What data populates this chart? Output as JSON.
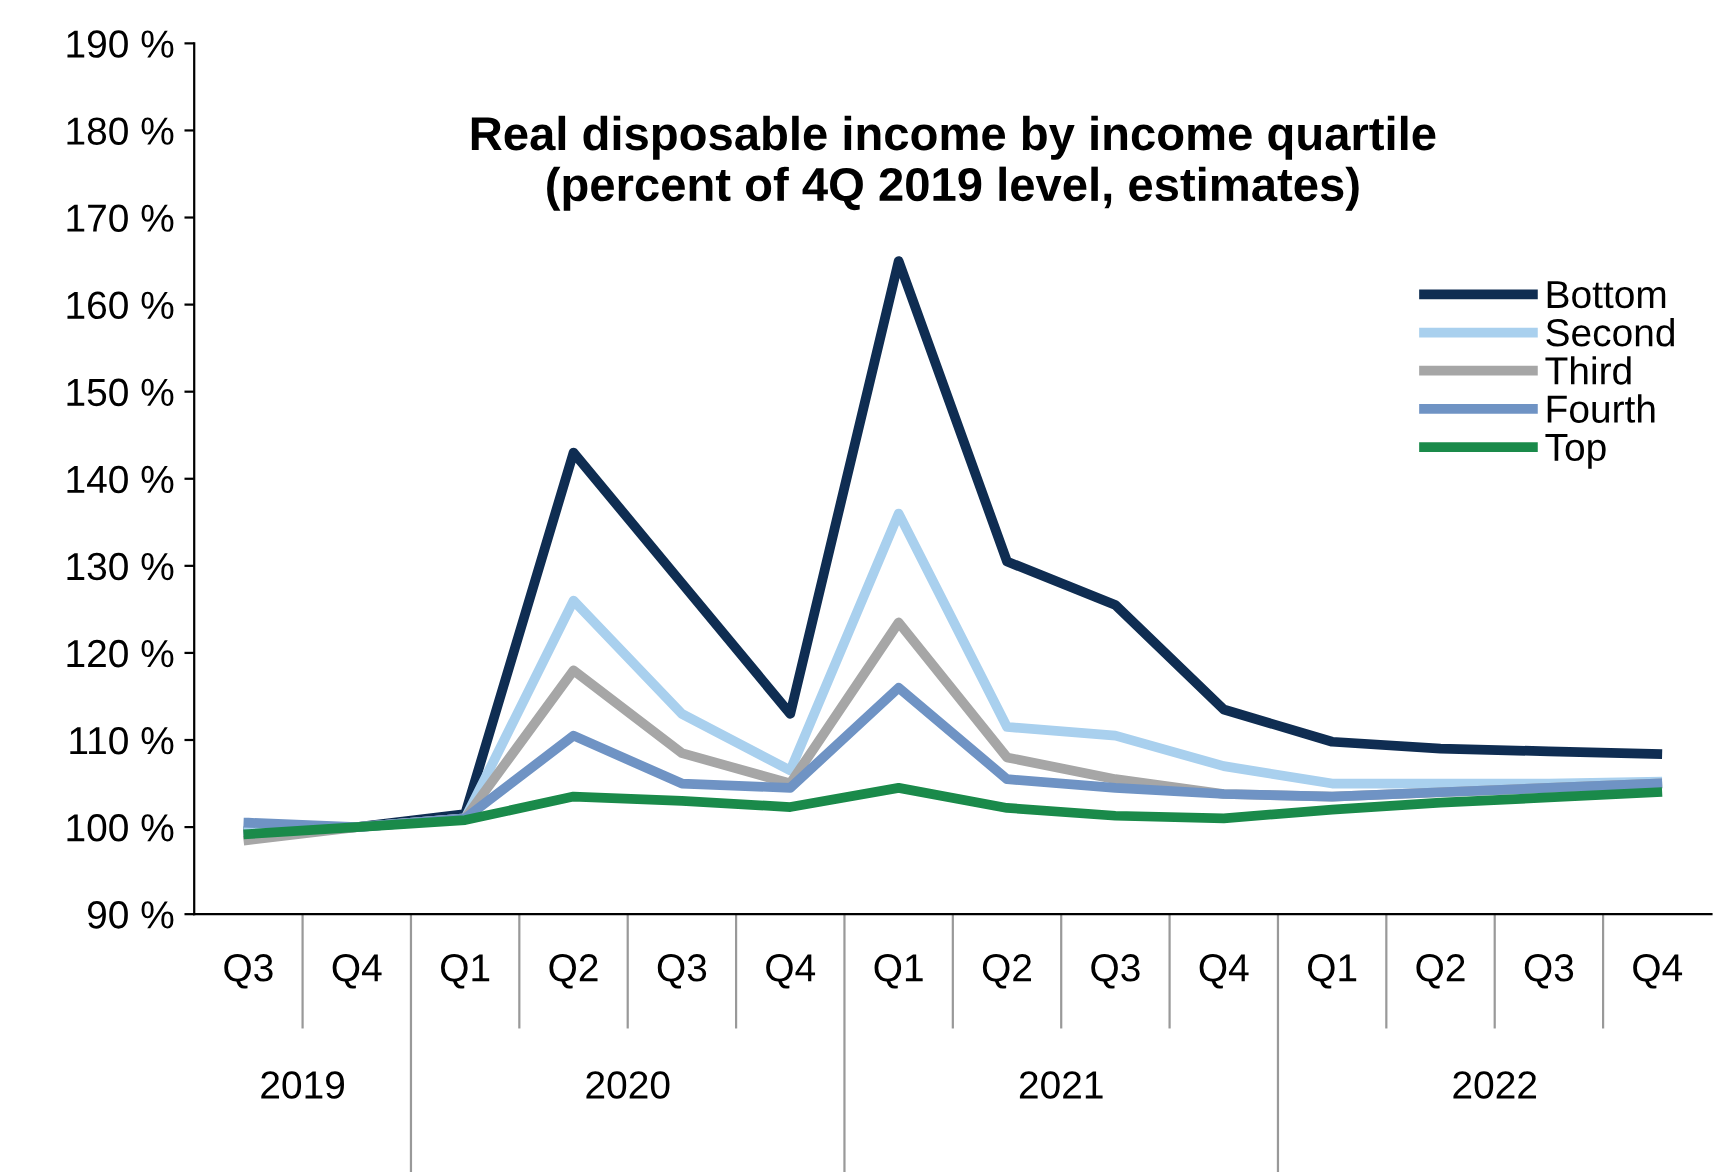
{
  "chart_data": {
    "type": "line",
    "title": "Real disposable income by income quartile\n(percent of 4Q 2019 level, estimates)",
    "categories": [
      "Q3",
      "Q4",
      "Q1",
      "Q2",
      "Q3",
      "Q4",
      "Q1",
      "Q2",
      "Q3",
      "Q4",
      "Q1",
      "Q2",
      "Q3",
      "Q4"
    ],
    "annotations": [
      "2019",
      "2020",
      "2021",
      "2022"
    ],
    "series": [
      {
        "name": "Bottom",
        "color": "#0f2d52",
        "values": [
          99.5,
          100,
          101.5,
          143,
          128,
          113,
          165,
          130.5,
          125.5,
          113.5,
          109.8,
          109,
          108.7,
          108.4
        ]
      },
      {
        "name": "Second",
        "color": "#a9d0ee",
        "values": [
          99.5,
          100,
          101,
          126,
          113,
          106.5,
          136,
          111.5,
          110.5,
          107,
          105,
          105,
          105,
          105.2
        ]
      },
      {
        "name": "Third",
        "color": "#a6a6a6",
        "values": [
          98.5,
          100,
          101,
          118,
          108.5,
          105,
          123.5,
          108,
          105.5,
          103.8,
          103.5,
          104,
          104.5,
          105
        ]
      },
      {
        "name": "Fourth",
        "color": "#6f93c4",
        "values": [
          100.5,
          100,
          101,
          110.5,
          105,
          104.5,
          116,
          105.5,
          104.5,
          103.8,
          103.5,
          104,
          104.5,
          105
        ]
      },
      {
        "name": "Top",
        "color": "#1a8a4a",
        "values": [
          99.2,
          100,
          100.8,
          103.5,
          103,
          102.3,
          104.5,
          102.2,
          101.3,
          101,
          102,
          102.8,
          103.4,
          104
        ]
      }
    ],
    "ylim": [
      90,
      190
    ],
    "yticks": [
      {
        "value": 90,
        "label": "90 %"
      },
      {
        "value": 100,
        "label": "100 %"
      },
      {
        "value": 110,
        "label": "110 %"
      },
      {
        "value": 120,
        "label": "120 %"
      },
      {
        "value": 130,
        "label": "130 %"
      },
      {
        "value": 140,
        "label": "140 %"
      },
      {
        "value": 150,
        "label": "150 %"
      },
      {
        "value": 160,
        "label": "160 %"
      },
      {
        "value": 170,
        "label": "170 %"
      },
      {
        "value": 180,
        "label": "180 %"
      },
      {
        "value": 190,
        "label": "190 %"
      }
    ],
    "grid": false,
    "legend": "right",
    "marker": "none",
    "line_style": "solid"
  }
}
